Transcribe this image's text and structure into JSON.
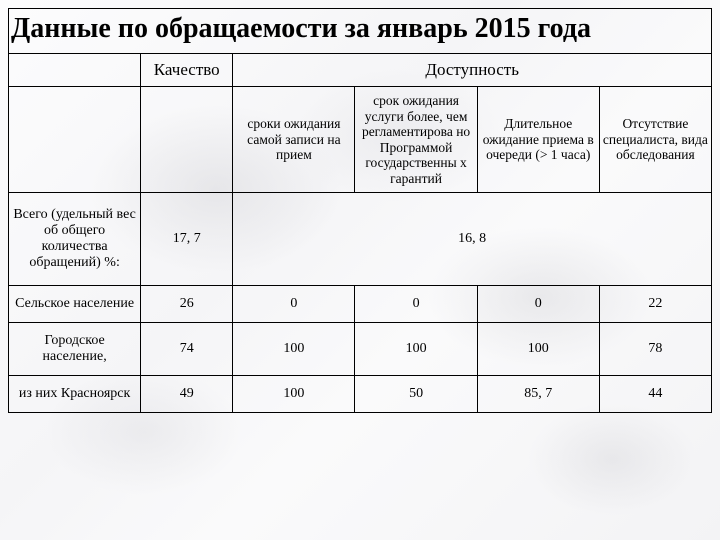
{
  "title": "Данные по обращаемости за январь 2015 года",
  "table": {
    "group_headers": {
      "quality": "Качество",
      "availability": "Доступность"
    },
    "sub_headers": {
      "c2": "сроки ожидания самой записи на прием",
      "c3": "срок ожидания услуги более, чем регламентирова но Программой государственны х гарантий",
      "c4": "Длительное ожидание приема в очереди (> 1 часа)",
      "c5": "Отсутствие специалиста, вида обследования"
    },
    "rows": [
      {
        "label": "Всего (удельный вес об общего количества обращений) %:",
        "c1": "17, 7",
        "c2_5": "16, 8"
      },
      {
        "label": "Сельское население",
        "c1": "26",
        "c2": "0",
        "c3": "0",
        "c4": "0",
        "c5": "22"
      },
      {
        "label": "Городское население,",
        "c1": "74",
        "c2": "100",
        "c3": "100",
        "c4": "100",
        "c5": "78"
      },
      {
        "label": "из них Красноярск",
        "c1": "49",
        "c2": "100",
        "c3": "50",
        "c4": "85, 7",
        "c5": "44"
      }
    ]
  },
  "style": {
    "title_fontsize": 28,
    "header_fontsize": 17,
    "cell_fontsize": 14,
    "border_color": "#000000",
    "background_color": "#ffffff",
    "text_color": "#000000",
    "font_family": "Times New Roman"
  }
}
